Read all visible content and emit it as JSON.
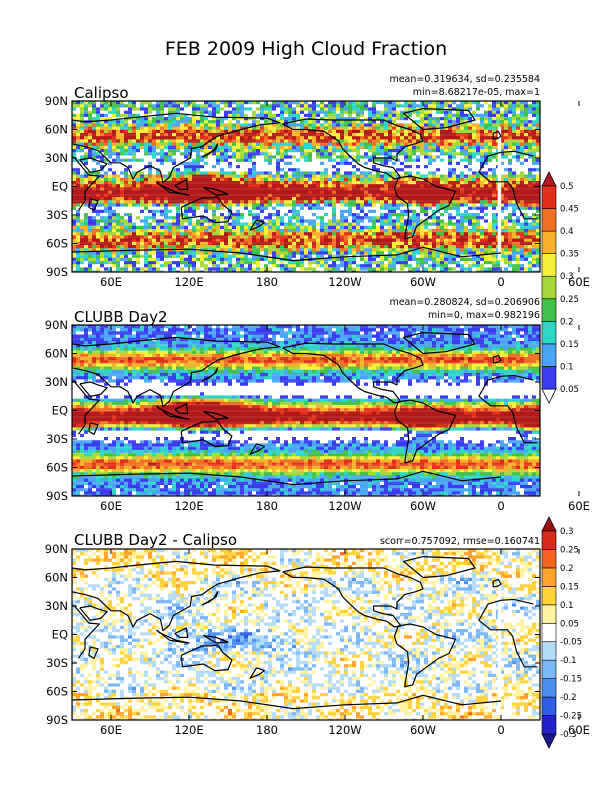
{
  "figure_title": "FEB 2009 High Cloud Fraction",
  "x_ticks": [
    "60E",
    "120E",
    "180",
    "120W",
    "60W",
    "0",
    "60E"
  ],
  "y_ticks": [
    "90N",
    "60N",
    "30N",
    "EQ",
    "30S",
    "60S",
    "90S"
  ],
  "panels": [
    {
      "title": "Calipso",
      "stats_line1": "mean=0.319634, sd=0.235584",
      "stats_line2": "min=8.68217e-05, max=1",
      "colorbar": "cloud"
    },
    {
      "title": "CLUBB Day2",
      "stats_line1": "mean=0.280824, sd=0.206906",
      "stats_line2": "min=0, max=0.982196",
      "colorbar": "cloud"
    },
    {
      "title": "CLUBB Day2 - Calipso",
      "stats_line1": "scorr=0.757092, rmse=0.160741",
      "stats_line2": "",
      "colorbar": "diff"
    }
  ],
  "colorbars": {
    "cloud": {
      "labels": [
        "0.05",
        "0.1",
        "0.15",
        "0.2",
        "0.25",
        "0.3",
        "0.35",
        "0.4",
        "0.45",
        "0.5"
      ],
      "colors": [
        "#ffffff",
        "#3a3cf0",
        "#4aa5f5",
        "#2ed6c9",
        "#41c24a",
        "#a5d93a",
        "#f7f03a",
        "#f7b22a",
        "#f07024",
        "#e3301e",
        "#b3181a"
      ]
    },
    "diff": {
      "labels": [
        "-0.3",
        "-0.25",
        "-0.2",
        "-0.15",
        "-0.1",
        "-0.05",
        "0.05",
        "0.1",
        "0.15",
        "0.2",
        "0.25",
        "0.3"
      ],
      "colors": [
        "#1a1a8c",
        "#2323cc",
        "#2f5fe6",
        "#4b8ff0",
        "#79b9f5",
        "#b3dcf8",
        "#ffffff",
        "#fff2a0",
        "#ffd23c",
        "#ffa32a",
        "#f5641e",
        "#d72a1a",
        "#9c1010"
      ]
    }
  }
}
